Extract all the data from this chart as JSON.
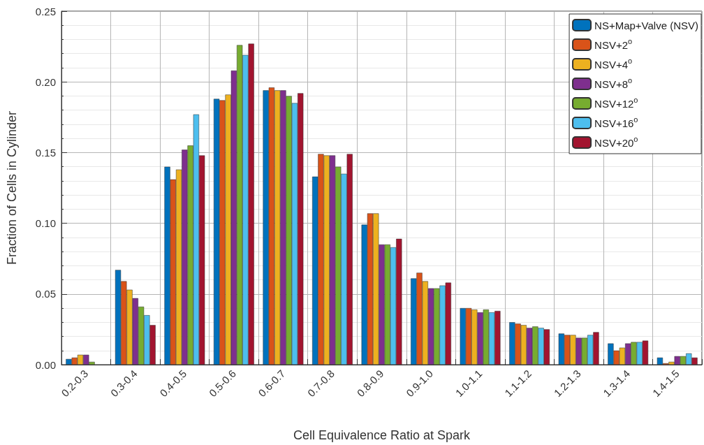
{
  "chart_data": {
    "type": "bar",
    "xlabel": "Cell Equivalence Ratio at Spark",
    "ylabel": "Fraction of Cells in Cylinder",
    "categories": [
      "0.2-0.3",
      "0.3-0.4",
      "0.4-0.5",
      "0.5-0.6",
      "0.6-0.7",
      "0.7-0.8",
      "0.8-0.9",
      "0.9-1.0",
      "1.0-1.1",
      "1.1-1.2",
      "1.2-1.3",
      "1.3-1.4",
      "1.4-1.5"
    ],
    "series": [
      {
        "name": "NS+Map+Valve (NSV)",
        "color": "#0072bd",
        "values": [
          0.004,
          0.067,
          0.14,
          0.188,
          0.194,
          0.133,
          0.099,
          0.061,
          0.04,
          0.03,
          0.022,
          0.015,
          0.005
        ]
      },
      {
        "name": "NSV+2$^{o}$",
        "color": "#d95319",
        "values": [
          0.005,
          0.059,
          0.131,
          0.187,
          0.196,
          0.149,
          0.107,
          0.065,
          0.04,
          0.029,
          0.021,
          0.01,
          0.001
        ]
      },
      {
        "name": "NSV+4$^{o}$",
        "color": "#edb120",
        "values": [
          0.007,
          0.053,
          0.138,
          0.191,
          0.194,
          0.148,
          0.107,
          0.059,
          0.039,
          0.028,
          0.021,
          0.012,
          0.002
        ]
      },
      {
        "name": "NSV+8$^{o}$",
        "color": "#7e2f8e",
        "values": [
          0.007,
          0.047,
          0.152,
          0.208,
          0.194,
          0.148,
          0.085,
          0.054,
          0.037,
          0.026,
          0.019,
          0.015,
          0.006
        ]
      },
      {
        "name": "NSV+12$^{o}$",
        "color": "#77ac30",
        "values": [
          0.002,
          0.041,
          0.155,
          0.226,
          0.19,
          0.14,
          0.085,
          0.054,
          0.039,
          0.027,
          0.019,
          0.016,
          0.006
        ]
      },
      {
        "name": "NSV+16$^{o}$",
        "color": "#4dbeee",
        "values": [
          null,
          0.035,
          0.177,
          0.219,
          0.185,
          0.135,
          0.083,
          0.056,
          0.037,
          0.026,
          0.021,
          0.016,
          0.008
        ]
      },
      {
        "name": "NSV+20$^{o}$",
        "color": "#a2142f",
        "values": [
          null,
          0.028,
          0.148,
          0.227,
          0.192,
          0.149,
          0.089,
          0.058,
          0.038,
          0.025,
          0.023,
          0.017,
          0.005
        ]
      }
    ],
    "ylim": [
      0,
      0.25
    ],
    "yticks": [
      {
        "value": 0,
        "label": "0.00"
      },
      {
        "value": 0.05,
        "label": "0.05"
      },
      {
        "value": 0.1,
        "label": "0.10"
      },
      {
        "value": 0.15,
        "label": "0.15"
      },
      {
        "value": 0.2,
        "label": "0.20"
      },
      {
        "value": 0.25,
        "label": "0.25"
      }
    ],
    "grid": true,
    "legend": "top right"
  }
}
